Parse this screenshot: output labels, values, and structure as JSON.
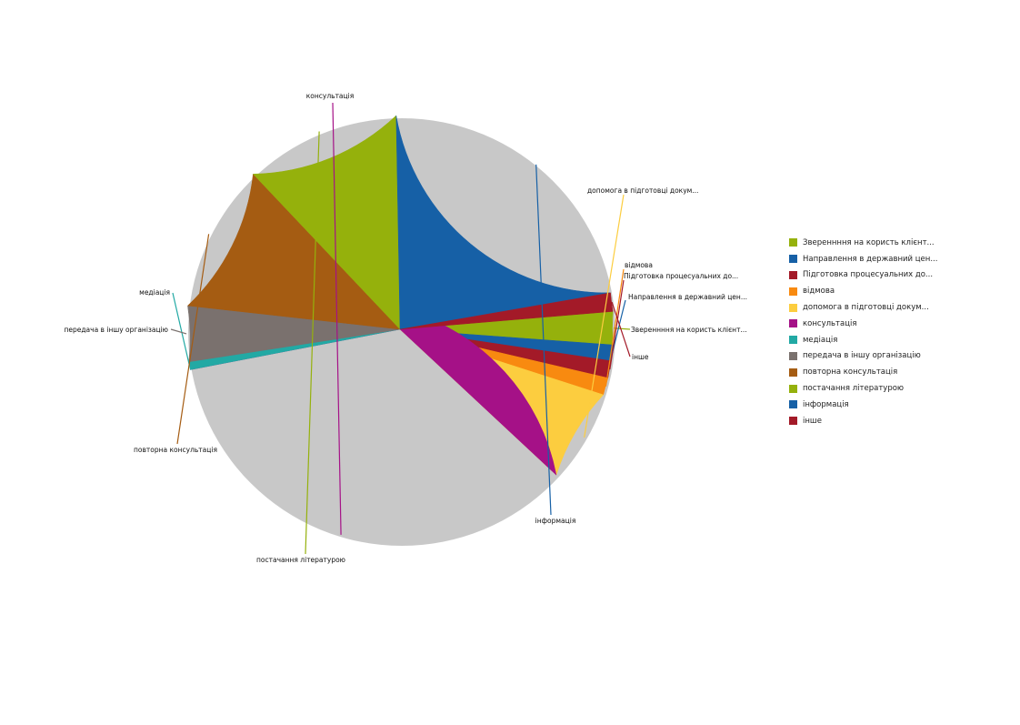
{
  "chart_data": {
    "type": "pie",
    "title": "",
    "legend_position": "right",
    "slices": [
      {
        "label": "Звереннння на користь клієнт...",
        "value": 2.5,
        "color": "#95b10c"
      },
      {
        "label": "Направлення в державний цен...",
        "value": 1.2,
        "color": "#1660a6"
      },
      {
        "label": "Підготовка процесуальних до...",
        "value": 1.3,
        "color": "#a31a28"
      },
      {
        "label": "відмова",
        "value": 1.3,
        "color": "#f88a10"
      },
      {
        "label": "допомога в підготовці докум...",
        "value": 7.0,
        "color": "#fccd3f"
      },
      {
        "label": "консультація",
        "value": 35.1,
        "color": "#a51187"
      },
      {
        "label": "медіація",
        "value": 0.6,
        "color": "#22a9a4"
      },
      {
        "label": "передача в іншу організацію",
        "value": 4.2,
        "color": "#7a716e"
      },
      {
        "label": "повторна консультація",
        "value": 11.2,
        "color": "#a55c12"
      },
      {
        "label": "постачання літературою",
        "value": 11.8,
        "color": "#95b10c"
      },
      {
        "label": "інформація",
        "value": 22.6,
        "color": "#1660a6"
      },
      {
        "label": "інше",
        "value": 1.4,
        "color": "#a31a28"
      }
    ]
  }
}
